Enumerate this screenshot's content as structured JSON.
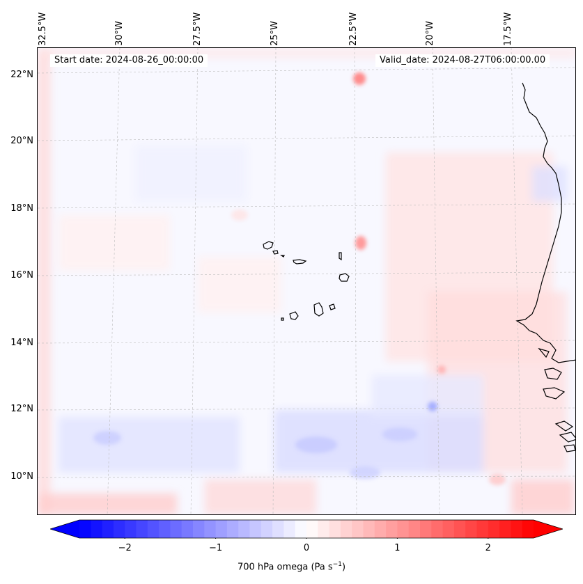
{
  "map": {
    "longitude_labels": [
      "32.5°W",
      "30°W",
      "27.5°W",
      "25°W",
      "22.5°W",
      "20°W",
      "17.5°W"
    ],
    "latitude_labels": [
      "22°N",
      "20°N",
      "18°N",
      "16°N",
      "14°N",
      "12°N",
      "10°N"
    ],
    "start_date": "Start date: 2024-08-26_00:00:00",
    "valid_date": "Valid_date: 2024-08-27T06:00:00.00",
    "field": "700 hPa omega",
    "unit": "Pa s",
    "unit_exponent": "−1",
    "coastline_color": "#000000",
    "gridline_color": "#bbbbbb"
  },
  "colorbar": {
    "ticks": [
      "−2",
      "−1",
      "0",
      "1",
      "2"
    ],
    "tick_values": [
      -2,
      -1,
      0,
      1,
      2
    ],
    "range": [
      -2.5,
      2.5
    ],
    "low_color": "#0000ff",
    "mid_color": "#ffffff",
    "high_color": "#ff0000",
    "extend": "both"
  }
}
